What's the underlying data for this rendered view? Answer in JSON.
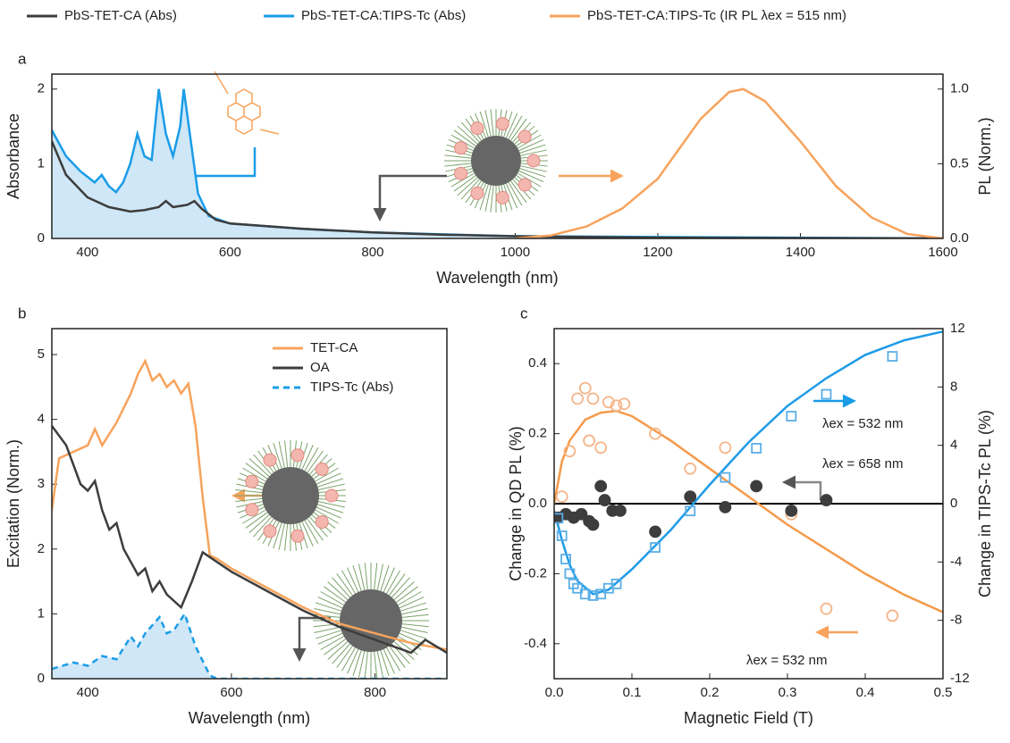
{
  "chart_data": [
    {
      "type": "line",
      "panel": "a",
      "xlabel": "Wavelength (nm)",
      "ylabel": "Absorbance",
      "y2label": "PL (Norm.)",
      "xlim": [
        350,
        1600
      ],
      "xticks": [
        400,
        600,
        800,
        1000,
        1200,
        1400,
        1600
      ],
      "ylim": [
        0,
        2.2
      ],
      "yticks": [
        0,
        1,
        2
      ],
      "y2lim": [
        0,
        1.1
      ],
      "y2ticks": [
        {
          "value": 0,
          "label": "0.0"
        },
        0.5,
        {
          "value": 1,
          "label": "1.0"
        }
      ],
      "legend": "top",
      "series": [
        {
          "name": "PbS-TET-CA:TIPS-Tc (Abs)",
          "color": "#1a9ce8",
          "fill": "#cfe7f7",
          "marker": "line",
          "x": [
            350,
            370,
            390,
            410,
            420,
            430,
            440,
            450,
            460,
            470,
            480,
            490,
            500,
            510,
            520,
            530,
            535,
            545,
            555,
            570,
            600,
            700,
            800,
            1000,
            1600
          ],
          "values": [
            1.45,
            1.1,
            0.9,
            0.75,
            0.85,
            0.7,
            0.62,
            0.75,
            1.0,
            1.4,
            1.1,
            1.05,
            2.0,
            1.4,
            1.1,
            1.5,
            2.0,
            1.3,
            0.6,
            0.3,
            0.2,
            0.13,
            0.08,
            0.03,
            0
          ]
        },
        {
          "name": "PbS-TET-CA (Abs)",
          "color": "#3d3d3d",
          "marker": "line",
          "x": [
            350,
            370,
            400,
            430,
            460,
            480,
            500,
            510,
            520,
            540,
            550,
            560,
            580,
            600,
            700,
            800,
            900,
            1000,
            1200,
            1400,
            1600
          ],
          "values": [
            1.3,
            0.85,
            0.55,
            0.42,
            0.36,
            0.38,
            0.42,
            0.5,
            0.42,
            0.45,
            0.5,
            0.4,
            0.25,
            0.2,
            0.13,
            0.08,
            0.05,
            0.03,
            0.01,
            0.005,
            0
          ]
        },
        {
          "name": "PbS-TET-CA:TIPS-Tc (IR PL λex = 515 nm)",
          "color": "#f7a35c",
          "axis": "y2",
          "marker": "line",
          "x": [
            1000,
            1050,
            1100,
            1150,
            1200,
            1230,
            1260,
            1300,
            1320,
            1350,
            1400,
            1450,
            1500,
            1550,
            1600
          ],
          "values": [
            0,
            0.02,
            0.08,
            0.2,
            0.4,
            0.6,
            0.8,
            0.98,
            1.0,
            0.92,
            0.65,
            0.35,
            0.14,
            0.03,
            0
          ]
        }
      ]
    },
    {
      "type": "line",
      "panel": "b",
      "xlabel": "Wavelength (nm)",
      "ylabel": "Excitation (Norm.)",
      "xlim": [
        350,
        900
      ],
      "xticks": [
        400,
        600,
        800
      ],
      "ylim": [
        0,
        5.4
      ],
      "yticks": [
        0,
        1,
        2,
        3,
        4,
        5
      ],
      "legend": "upper right",
      "series": [
        {
          "name": "TET-CA",
          "color": "#f7a35c",
          "marker": "line",
          "x": [
            350,
            360,
            380,
            400,
            410,
            420,
            440,
            460,
            470,
            480,
            490,
            500,
            510,
            520,
            530,
            540,
            550,
            560,
            570,
            580,
            600,
            650,
            700,
            750,
            800,
            850,
            900
          ],
          "values": [
            2.6,
            3.4,
            3.5,
            3.6,
            3.85,
            3.6,
            3.95,
            4.4,
            4.7,
            4.9,
            4.6,
            4.7,
            4.5,
            4.6,
            4.4,
            4.55,
            3.9,
            2.8,
            1.9,
            1.85,
            1.7,
            1.4,
            1.1,
            0.85,
            0.7,
            0.55,
            0.45
          ]
        },
        {
          "name": "OA",
          "color": "#3d3d3d",
          "marker": "line",
          "x": [
            350,
            370,
            390,
            400,
            410,
            420,
            430,
            440,
            450,
            470,
            480,
            490,
            500,
            510,
            530,
            545,
            560,
            580,
            600,
            650,
            700,
            750,
            800,
            850,
            870,
            900
          ],
          "values": [
            3.9,
            3.6,
            3.0,
            2.9,
            3.05,
            2.6,
            2.3,
            2.4,
            2.0,
            1.6,
            1.7,
            1.35,
            1.5,
            1.3,
            1.1,
            1.5,
            1.95,
            1.8,
            1.65,
            1.35,
            1.05,
            0.8,
            0.6,
            0.4,
            0.6,
            0.4
          ]
        },
        {
          "name": "TIPS-Tc (Abs)",
          "color": "#1a9ce8",
          "fill": "#cfe7f7",
          "dash": true,
          "marker": "line",
          "x": [
            350,
            380,
            400,
            420,
            440,
            460,
            470,
            480,
            500,
            510,
            520,
            535,
            550,
            570,
            580,
            900
          ],
          "values": [
            0.15,
            0.25,
            0.2,
            0.35,
            0.3,
            0.65,
            0.5,
            0.7,
            0.95,
            0.7,
            0.75,
            1.0,
            0.5,
            0.05,
            0,
            0
          ]
        }
      ]
    },
    {
      "type": "scatter",
      "panel": "c",
      "xlabel": "Magnetic Field (T)",
      "ylabel": "Change in QD PL (%)",
      "y2label": "Change in TIPS-Tc PL (%)",
      "xlim": [
        0,
        0.5
      ],
      "xticks": [
        {
          "value": 0,
          "label": "0.0"
        },
        0.1,
        0.2,
        0.3,
        0.4,
        0.5
      ],
      "ylim": [
        -0.5,
        0.5
      ],
      "yticks": [
        -0.4,
        -0.2,
        {
          "value": 0,
          "label": "0.0"
        },
        0.2,
        0.4
      ],
      "y2lim": [
        -12,
        12
      ],
      "y2ticks": [
        -12,
        -8,
        -4,
        0,
        4,
        8,
        12
      ],
      "zero_line": true,
      "annotations": [
        {
          "text": "λex = 532 nm",
          "color": "#1a7fd0"
        },
        {
          "text": "λex = 658 nm",
          "color": "#555555"
        },
        {
          "text": "λex = 532 nm",
          "color": "#f08a3c"
        }
      ],
      "series": [
        {
          "color": "#f59a4a",
          "marker": "line",
          "x": [
            0,
            0.01,
            0.02,
            0.04,
            0.06,
            0.08,
            0.1,
            0.15,
            0.2,
            0.25,
            0.3,
            0.35,
            0.4,
            0.45,
            0.5
          ],
          "values": [
            0,
            0.12,
            0.18,
            0.24,
            0.26,
            0.265,
            0.25,
            0.18,
            0.1,
            0.02,
            -0.06,
            -0.13,
            -0.2,
            -0.26,
            -0.31
          ]
        },
        {
          "color": "#1e9be8",
          "axis": "y2",
          "marker": "line",
          "x": [
            0,
            0.01,
            0.02,
            0.03,
            0.05,
            0.07,
            0.1,
            0.15,
            0.2,
            0.25,
            0.3,
            0.35,
            0.4,
            0.45,
            0.5
          ],
          "values": [
            -0.5,
            -2.5,
            -4.2,
            -5.3,
            -6.2,
            -5.9,
            -4.5,
            -1.8,
            1.3,
            4.2,
            6.7,
            8.6,
            10.2,
            11.2,
            11.8
          ]
        },
        {
          "color": "#f5b58a",
          "marker": "open-circle",
          "x": [
            0.01,
            0.02,
            0.03,
            0.04,
            0.045,
            0.05,
            0.06,
            0.07,
            0.08,
            0.09,
            0.13,
            0.175,
            0.22,
            0.26,
            0.305,
            0.35,
            0.435
          ],
          "values": [
            0.02,
            0.15,
            0.3,
            0.33,
            0.18,
            0.3,
            0.16,
            0.29,
            0.28,
            0.285,
            0.2,
            0.1,
            0.16,
            0.05,
            -0.03,
            -0.3,
            -0.32
          ]
        },
        {
          "color": "#3d3d3d",
          "marker": "filled-circle",
          "x": [
            0.005,
            0.015,
            0.025,
            0.035,
            0.045,
            0.05,
            0.06,
            0.065,
            0.075,
            0.085,
            0.13,
            0.175,
            0.22,
            0.26,
            0.305,
            0.35
          ],
          "values": [
            -0.04,
            -0.03,
            -0.04,
            -0.03,
            -0.05,
            -0.06,
            0.05,
            0.01,
            -0.02,
            -0.02,
            -0.08,
            0.02,
            -0.01,
            0.05,
            -0.02,
            0.01
          ]
        },
        {
          "color": "#5aaee6",
          "axis": "y2",
          "marker": "open-square",
          "x": [
            0.005,
            0.01,
            0.015,
            0.02,
            0.025,
            0.03,
            0.04,
            0.05,
            0.06,
            0.07,
            0.08,
            0.13,
            0.175,
            0.22,
            0.26,
            0.305,
            0.35,
            0.435
          ],
          "values": [
            -1,
            -2.2,
            -3.8,
            -4.8,
            -5.5,
            -5.8,
            -6.2,
            -6.3,
            -6.2,
            -5.8,
            -5.5,
            -3,
            -0.5,
            1.8,
            3.8,
            6,
            7.5,
            10.1
          ]
        }
      ]
    }
  ]
}
